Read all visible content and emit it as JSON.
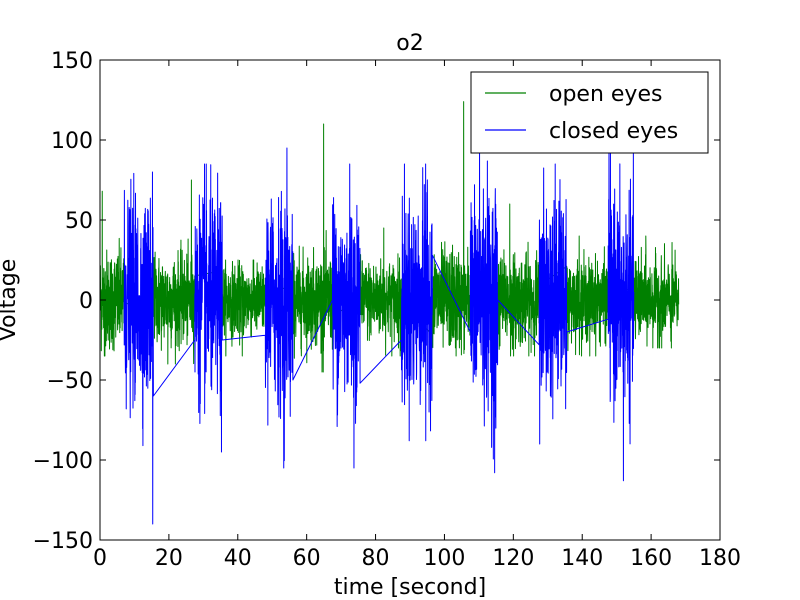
{
  "chart_data": {
    "type": "line",
    "title": "o2",
    "xlabel": "time [second]",
    "ylabel": "Voltage",
    "xlim": [
      0,
      180
    ],
    "ylim": [
      -150,
      150
    ],
    "xticks": [
      0,
      20,
      40,
      60,
      80,
      100,
      120,
      140,
      160,
      180
    ],
    "yticks": [
      -150,
      -100,
      -50,
      0,
      50,
      100,
      150
    ],
    "xtick_labels": [
      "0",
      "20",
      "40",
      "60",
      "80",
      "100",
      "120",
      "140",
      "160",
      "180"
    ],
    "ytick_labels": [
      "−150",
      "−100",
      "−50",
      "0",
      "50",
      "100",
      "150"
    ],
    "grid": false,
    "legend_position": "upper right",
    "colors": {
      "open": "#008000",
      "closed": "#0000ff"
    },
    "series": [
      {
        "name": "open eyes",
        "color": "#008000",
        "segments": [
          {
            "start": 0,
            "end": 7,
            "peak_max": 68,
            "peak_min": -35,
            "typical_amplitude": 28
          },
          {
            "start": 15.5,
            "end": 27.5,
            "peak_max": 75,
            "peak_min": -40,
            "typical_amplitude": 25
          },
          {
            "start": 35.5,
            "end": 48,
            "peak_max": 25,
            "peak_min": -35,
            "typical_amplitude": 20
          },
          {
            "start": 56,
            "end": 67.5,
            "peak_max": 110,
            "peak_min": -45,
            "typical_amplitude": 25
          },
          {
            "start": 75.5,
            "end": 87.5,
            "peak_max": 45,
            "peak_min": -35,
            "typical_amplitude": 22
          },
          {
            "start": 96.5,
            "end": 107.5,
            "peak_max": 124,
            "peak_min": -35,
            "typical_amplitude": 28
          },
          {
            "start": 115.5,
            "end": 127.5,
            "peak_max": 60,
            "peak_min": -35,
            "typical_amplitude": 25
          },
          {
            "start": 135.5,
            "end": 147.5,
            "peak_max": 40,
            "peak_min": -35,
            "typical_amplitude": 22
          },
          {
            "start": 155,
            "end": 168,
            "peak_max": 40,
            "peak_min": -30,
            "typical_amplitude": 22
          }
        ]
      },
      {
        "name": "closed eyes",
        "color": "#0000ff",
        "segments": [
          {
            "start": 7,
            "end": 15.5,
            "peak_max": 80,
            "peak_min": -140,
            "typical_amplitude": 55,
            "end_value": -60
          },
          {
            "start": 27.5,
            "end": 35.5,
            "peak_max": 85,
            "peak_min": -95,
            "typical_amplitude": 55,
            "start_value": -25,
            "end_value": -25
          },
          {
            "start": 48,
            "end": 56,
            "peak_max": 95,
            "peak_min": -105,
            "typical_amplitude": 55,
            "start_value": -22,
            "end_value": -50
          },
          {
            "start": 67.5,
            "end": 75.5,
            "peak_max": 85,
            "peak_min": -105,
            "typical_amplitude": 55,
            "start_value": 0,
            "end_value": -52
          },
          {
            "start": 87.5,
            "end": 96.5,
            "peak_max": 85,
            "peak_min": -88,
            "typical_amplitude": 55,
            "start_value": -25,
            "end_value": 28
          },
          {
            "start": 107.5,
            "end": 115.5,
            "peak_max": 100,
            "peak_min": -108,
            "typical_amplitude": 60,
            "start_value": -20,
            "end_value": 0
          },
          {
            "start": 127.5,
            "end": 135.5,
            "peak_max": 85,
            "peak_min": -90,
            "typical_amplitude": 55,
            "start_value": -28,
            "end_value": -20
          },
          {
            "start": 147.5,
            "end": 155,
            "peak_max": 95,
            "peak_min": -113,
            "typical_amplitude": 55,
            "start_value": -12
          }
        ]
      }
    ]
  }
}
